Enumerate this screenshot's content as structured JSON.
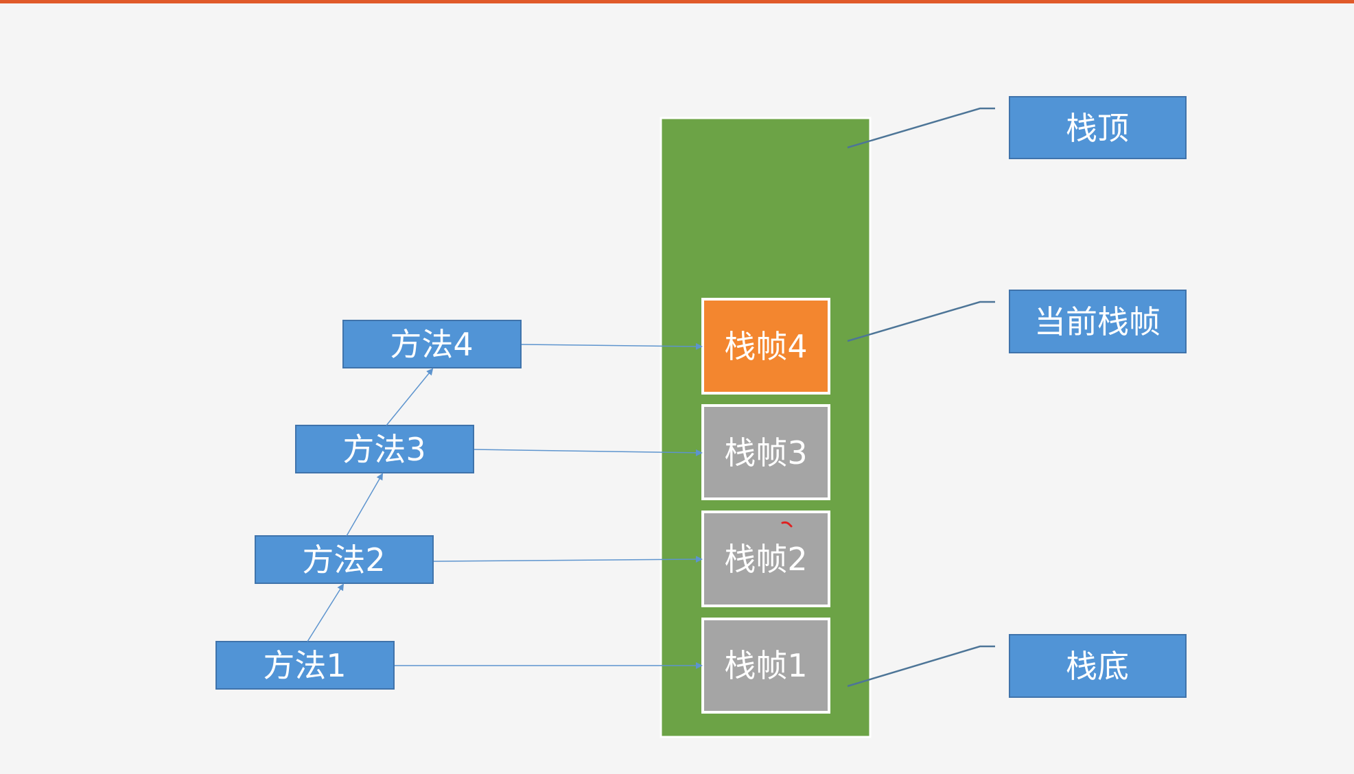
{
  "colors": {
    "accent_bar": "#e05a2a",
    "background": "#f5f5f5",
    "stack_body": "#6ca346",
    "current_frame": "#f3862f",
    "frame": "#a5a5a5",
    "method_box": "#5194d6",
    "method_border": "#3f73ab",
    "label_box": "#5194d6",
    "connector": "#4d7597",
    "arrow": "#5d94ce",
    "text": "#ffffff"
  },
  "methods": [
    {
      "label": "方法1"
    },
    {
      "label": "方法2"
    },
    {
      "label": "方法3"
    },
    {
      "label": "方法4"
    }
  ],
  "frames": [
    {
      "label": "栈帧1",
      "current": false
    },
    {
      "label": "栈帧2",
      "current": false
    },
    {
      "label": "栈帧3",
      "current": false
    },
    {
      "label": "栈帧4",
      "current": true
    }
  ],
  "callouts": {
    "top": "栈顶",
    "current": "当前栈帧",
    "bottom": "栈底"
  }
}
